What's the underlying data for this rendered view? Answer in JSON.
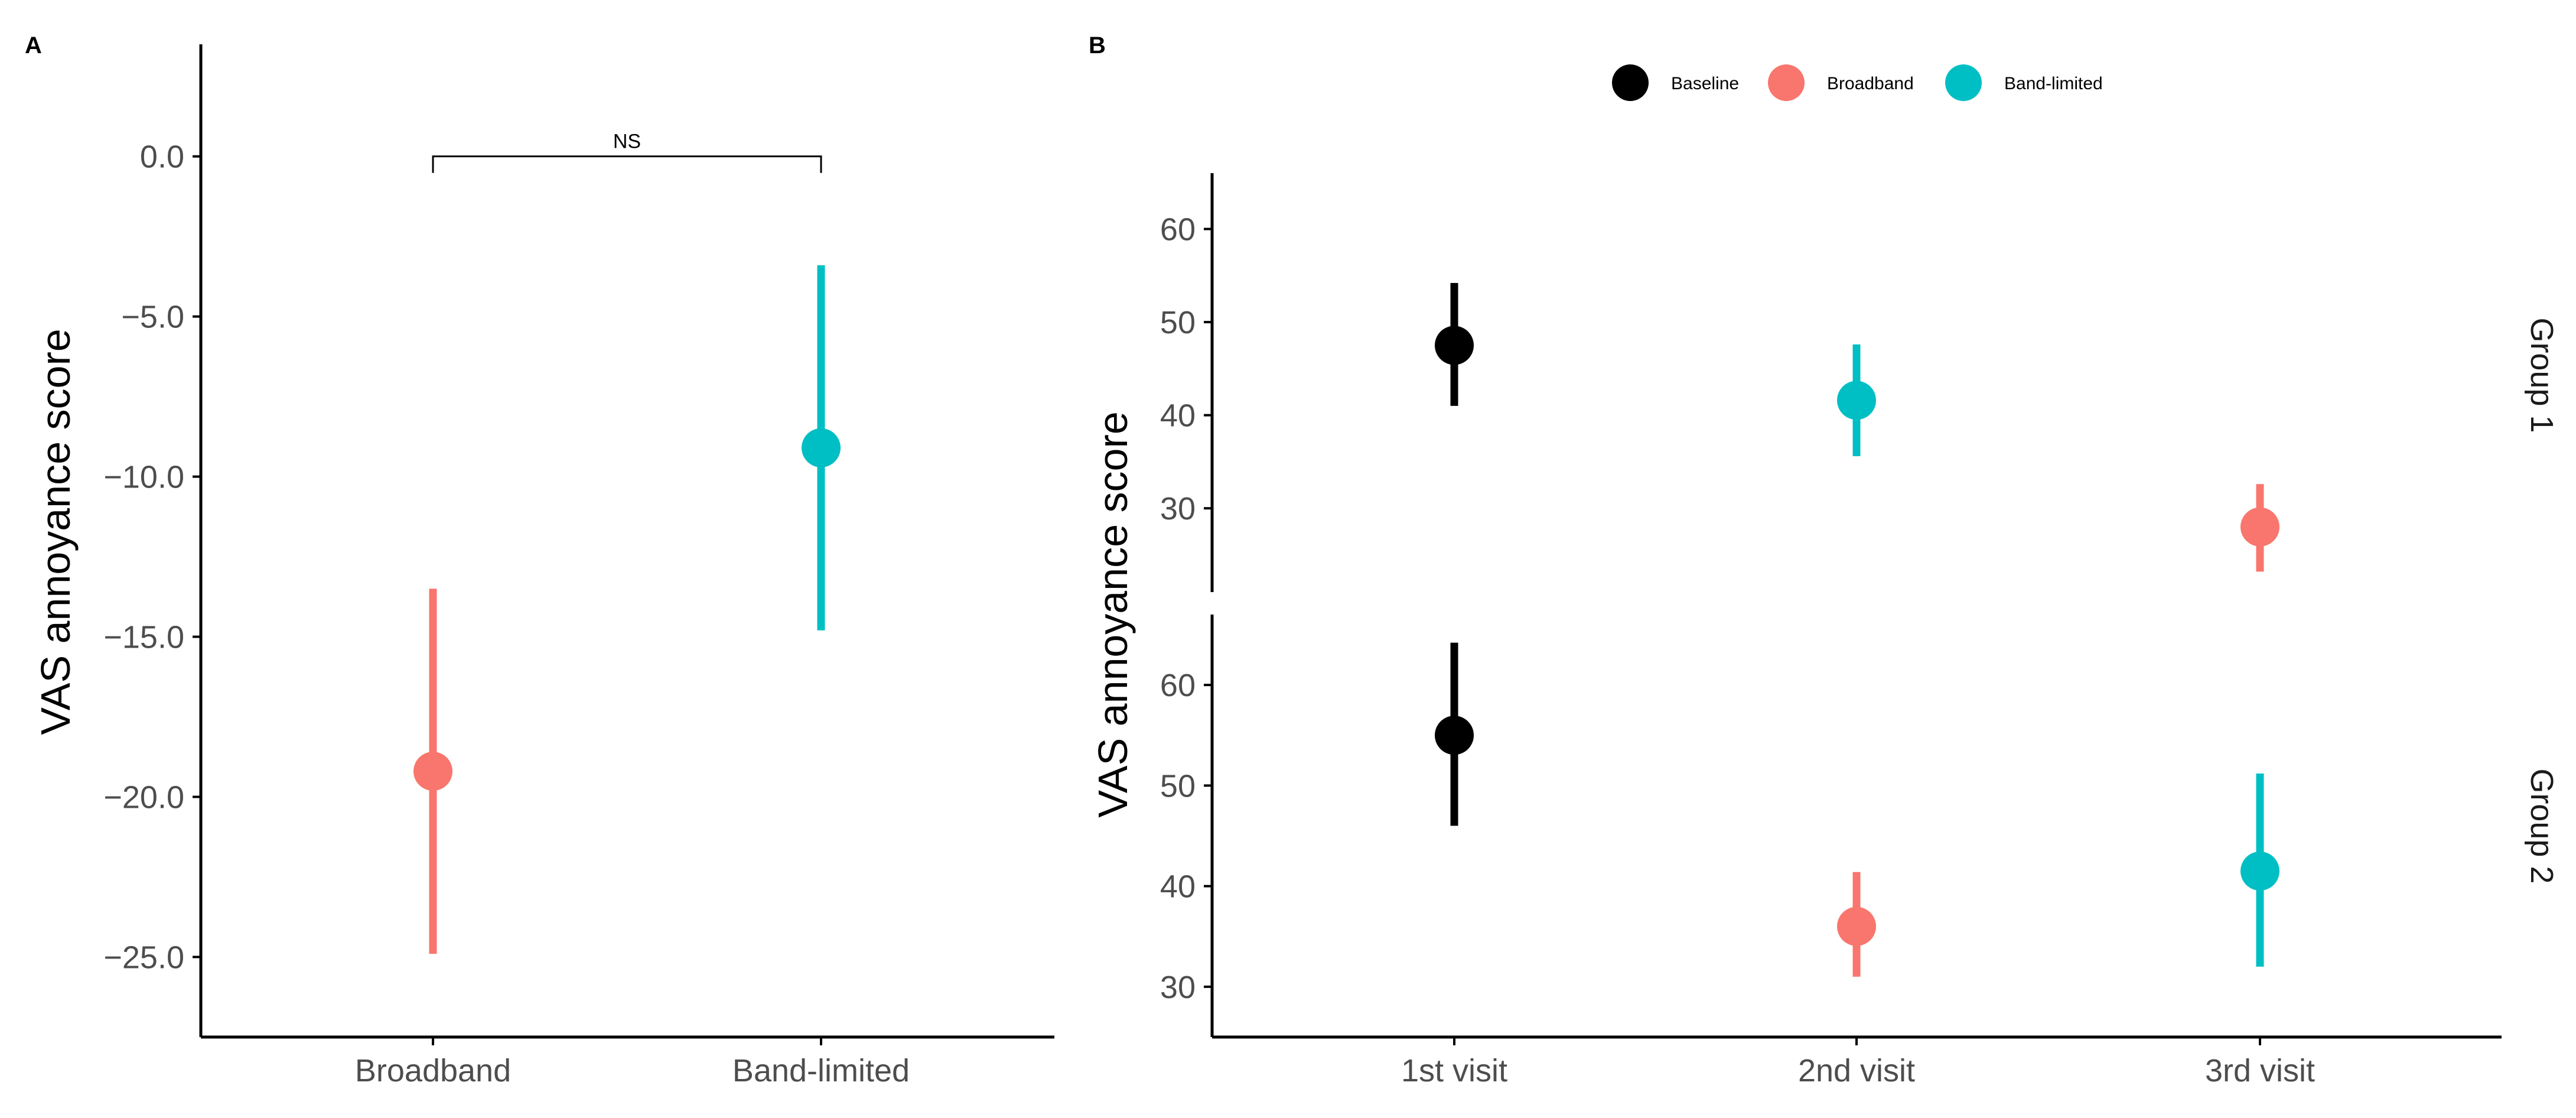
{
  "colors": {
    "Baseline": "#000000",
    "Broadband": "#F8766D",
    "Band-limited": "#00BFC4"
  },
  "chart_data": [
    {
      "panel_label": "A",
      "type": "scatter",
      "subtype": "point-range",
      "xlabel": "",
      "ylabel": "VAS annoyance score",
      "ylim": [
        -27.5,
        3.5
      ],
      "yticks": [
        0,
        -5,
        -10,
        -15,
        -20,
        -25
      ],
      "ytick_labels": [
        "0.0",
        "−5.0",
        "−10.0",
        "−15.0",
        "−20.0",
        "−25.0"
      ],
      "categories": [
        "Broadband",
        "Band-limited"
      ],
      "points": [
        {
          "category": "Broadband",
          "value": -19.2,
          "lower": -24.9,
          "upper": -13.5,
          "color_key": "Broadband"
        },
        {
          "category": "Band-limited",
          "value": -9.1,
          "lower": -14.8,
          "upper": -3.4,
          "color_key": "Band-limited"
        }
      ],
      "annotation": {
        "text": "NS",
        "between": [
          "Broadband",
          "Band-limited"
        ],
        "y": 0
      }
    },
    {
      "panel_label": "B",
      "type": "scatter",
      "subtype": "point-range-faceted",
      "xlabel": "",
      "ylabel": "VAS annoyance score",
      "categories": [
        "1st visit",
        "2nd visit",
        "3rd visit"
      ],
      "legend": {
        "position": "top",
        "entries": [
          "Baseline",
          "Broadband",
          "Band-limited"
        ]
      },
      "facets": [
        {
          "name": "Group 1",
          "ylim": [
            21,
            66
          ],
          "yticks": [
            30,
            40,
            50,
            60
          ],
          "ytick_labels": [
            "30",
            "40",
            "50",
            "60"
          ],
          "points": [
            {
              "category": "1st visit",
              "series": "Baseline",
              "value": 47.5,
              "lower": 41.0,
              "upper": 54.2
            },
            {
              "category": "2nd visit",
              "series": "Band-limited",
              "value": 41.6,
              "lower": 35.6,
              "upper": 47.6
            },
            {
              "category": "3rd visit",
              "series": "Broadband",
              "value": 28.0,
              "lower": 23.2,
              "upper": 32.6
            }
          ]
        },
        {
          "name": "Group 2",
          "ylim": [
            25,
            67
          ],
          "yticks": [
            30,
            40,
            50,
            60
          ],
          "ytick_labels": [
            "30",
            "40",
            "50",
            "60"
          ],
          "points": [
            {
              "category": "1st visit",
              "series": "Baseline",
              "value": 55.0,
              "lower": 46.0,
              "upper": 64.2
            },
            {
              "category": "2nd visit",
              "series": "Broadband",
              "value": 36.0,
              "lower": 31.0,
              "upper": 41.4
            },
            {
              "category": "3rd visit",
              "series": "Band-limited",
              "value": 41.5,
              "lower": 32.0,
              "upper": 51.2
            }
          ]
        }
      ]
    }
  ]
}
